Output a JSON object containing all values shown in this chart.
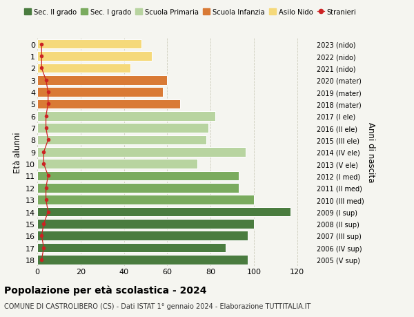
{
  "ages": [
    18,
    17,
    16,
    15,
    14,
    13,
    12,
    11,
    10,
    9,
    8,
    7,
    6,
    5,
    4,
    3,
    2,
    1,
    0
  ],
  "right_labels": [
    "2005 (V sup)",
    "2006 (IV sup)",
    "2007 (III sup)",
    "2008 (II sup)",
    "2009 (I sup)",
    "2010 (III med)",
    "2011 (II med)",
    "2012 (I med)",
    "2013 (V ele)",
    "2014 (IV ele)",
    "2015 (III ele)",
    "2016 (II ele)",
    "2017 (I ele)",
    "2018 (mater)",
    "2019 (mater)",
    "2020 (mater)",
    "2021 (nido)",
    "2022 (nido)",
    "2023 (nido)"
  ],
  "bar_values": [
    97,
    87,
    97,
    100,
    117,
    100,
    93,
    93,
    74,
    96,
    78,
    79,
    82,
    66,
    58,
    60,
    43,
    53,
    48
  ],
  "stranieri_values": [
    2,
    3,
    2,
    3,
    5,
    4,
    4,
    5,
    3,
    3,
    5,
    4,
    4,
    5,
    5,
    4,
    2,
    2,
    2
  ],
  "bar_colors": [
    "#4a7c3f",
    "#4a7c3f",
    "#4a7c3f",
    "#4a7c3f",
    "#4a7c3f",
    "#7aab5e",
    "#7aab5e",
    "#7aab5e",
    "#b8d4a0",
    "#b8d4a0",
    "#b8d4a0",
    "#b8d4a0",
    "#b8d4a0",
    "#d97a35",
    "#d97a35",
    "#d97a35",
    "#f5d97a",
    "#f5d97a",
    "#f5d97a"
  ],
  "legend_labels": [
    "Sec. II grado",
    "Sec. I grado",
    "Scuola Primaria",
    "Scuola Infanzia",
    "Asilo Nido",
    "Stranieri"
  ],
  "legend_colors": [
    "#4a7c3f",
    "#7aab5e",
    "#b8d4a0",
    "#d97a35",
    "#f5d97a",
    "#cc2222"
  ],
  "stranieri_color": "#cc2222",
  "title": "Popolazione per età scolastica - 2024",
  "subtitle": "COMUNE DI CASTROLIBERO (CS) - Dati ISTAT 1° gennaio 2024 - Elaborazione TUTTITALIA.IT",
  "ylabel": "Età alunni",
  "right_ylabel": "Anni di nascita",
  "xlim": [
    0,
    128
  ],
  "xticks": [
    0,
    20,
    40,
    60,
    80,
    100,
    120
  ],
  "bar_height": 0.78,
  "background_color": "#f5f5f0",
  "grid_color": "#ccccbb"
}
